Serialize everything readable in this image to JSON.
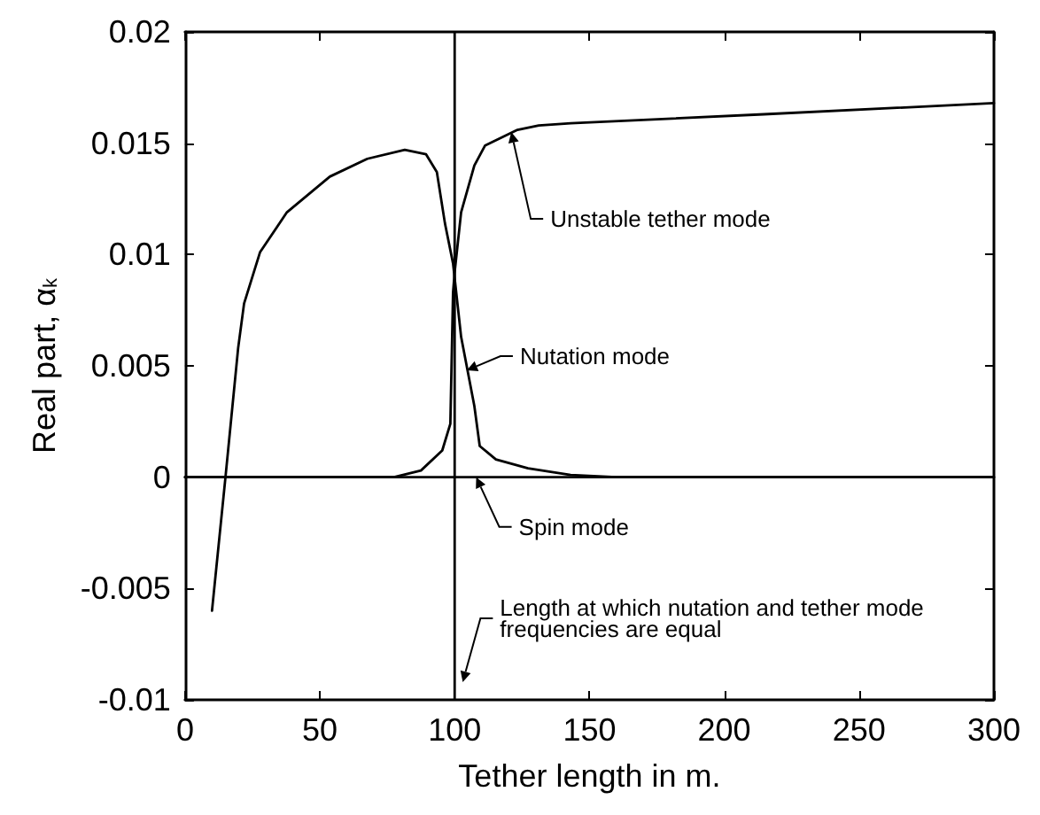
{
  "chart_data": {
    "type": "line",
    "xlabel": "Tether length in m.",
    "ylabel": "Real part, α$_{k}$",
    "xlim": [
      0,
      300
    ],
    "xticks": [
      0,
      50,
      100,
      150,
      200,
      250,
      300
    ],
    "ylim": [
      -0.01,
      0.02
    ],
    "yticks": [
      -0.01,
      -0.005,
      0,
      0.005,
      0.01,
      0.015,
      0.02
    ],
    "marker": "none",
    "line_style": "solid",
    "grid": false,
    "series": [
      {
        "color": "#000000",
        "x": [
          10,
          15,
          19.7,
          21.9,
          27.8,
          37.8,
          53.7,
          67.6,
          81.5,
          89.4,
          93.4,
          96.4,
          99.4,
          102.4,
          107.3,
          109.3,
          115.3,
          127.2,
          143,
          160,
          200,
          250,
          300
        ],
        "values": [
          -0.006,
          0,
          0.0058,
          0.0078,
          0.0101,
          0.0119,
          0.0135,
          0.0143,
          0.0147,
          0.0145,
          0.0137,
          0.0114,
          0.0096,
          0.0063,
          0.0032,
          0.0014,
          0.0008,
          0.0004,
          0.0001,
          0,
          0,
          0,
          0
        ]
      },
      {
        "color": "#000000",
        "x": [
          0,
          50,
          77.5,
          87.5,
          95.4,
          98.4,
          99.4,
          100,
          102.4,
          107.3,
          111.3,
          123.3,
          131.2,
          143.1,
          214.7,
          300
        ],
        "values": [
          0,
          0,
          0,
          0.0003,
          0.0012,
          0.0024,
          0.0083,
          0.0092,
          0.0119,
          0.014,
          0.0149,
          0.0156,
          0.0158,
          0.0159,
          0.0163,
          0.0168
        ]
      },
      {
        "color": "#000000",
        "x": [
          0,
          300
        ],
        "values": [
          0,
          0
        ]
      }
    ],
    "ref_lines": [
      {
        "axis": "x",
        "value": 100,
        "color": "#000000"
      }
    ],
    "annotations": [
      {
        "text": "Unstable tether mode",
        "x": 121,
        "y": 0.0155
      },
      {
        "text": "Nutation mode",
        "x": 104.5,
        "y": 0.0048
      },
      {
        "text": "Spin mode",
        "x": 108,
        "y": 0
      },
      {
        "text": "Length at which nutation and tether mode\nfrequencies are equal",
        "x": 103,
        "y": -0.0092
      }
    ]
  }
}
